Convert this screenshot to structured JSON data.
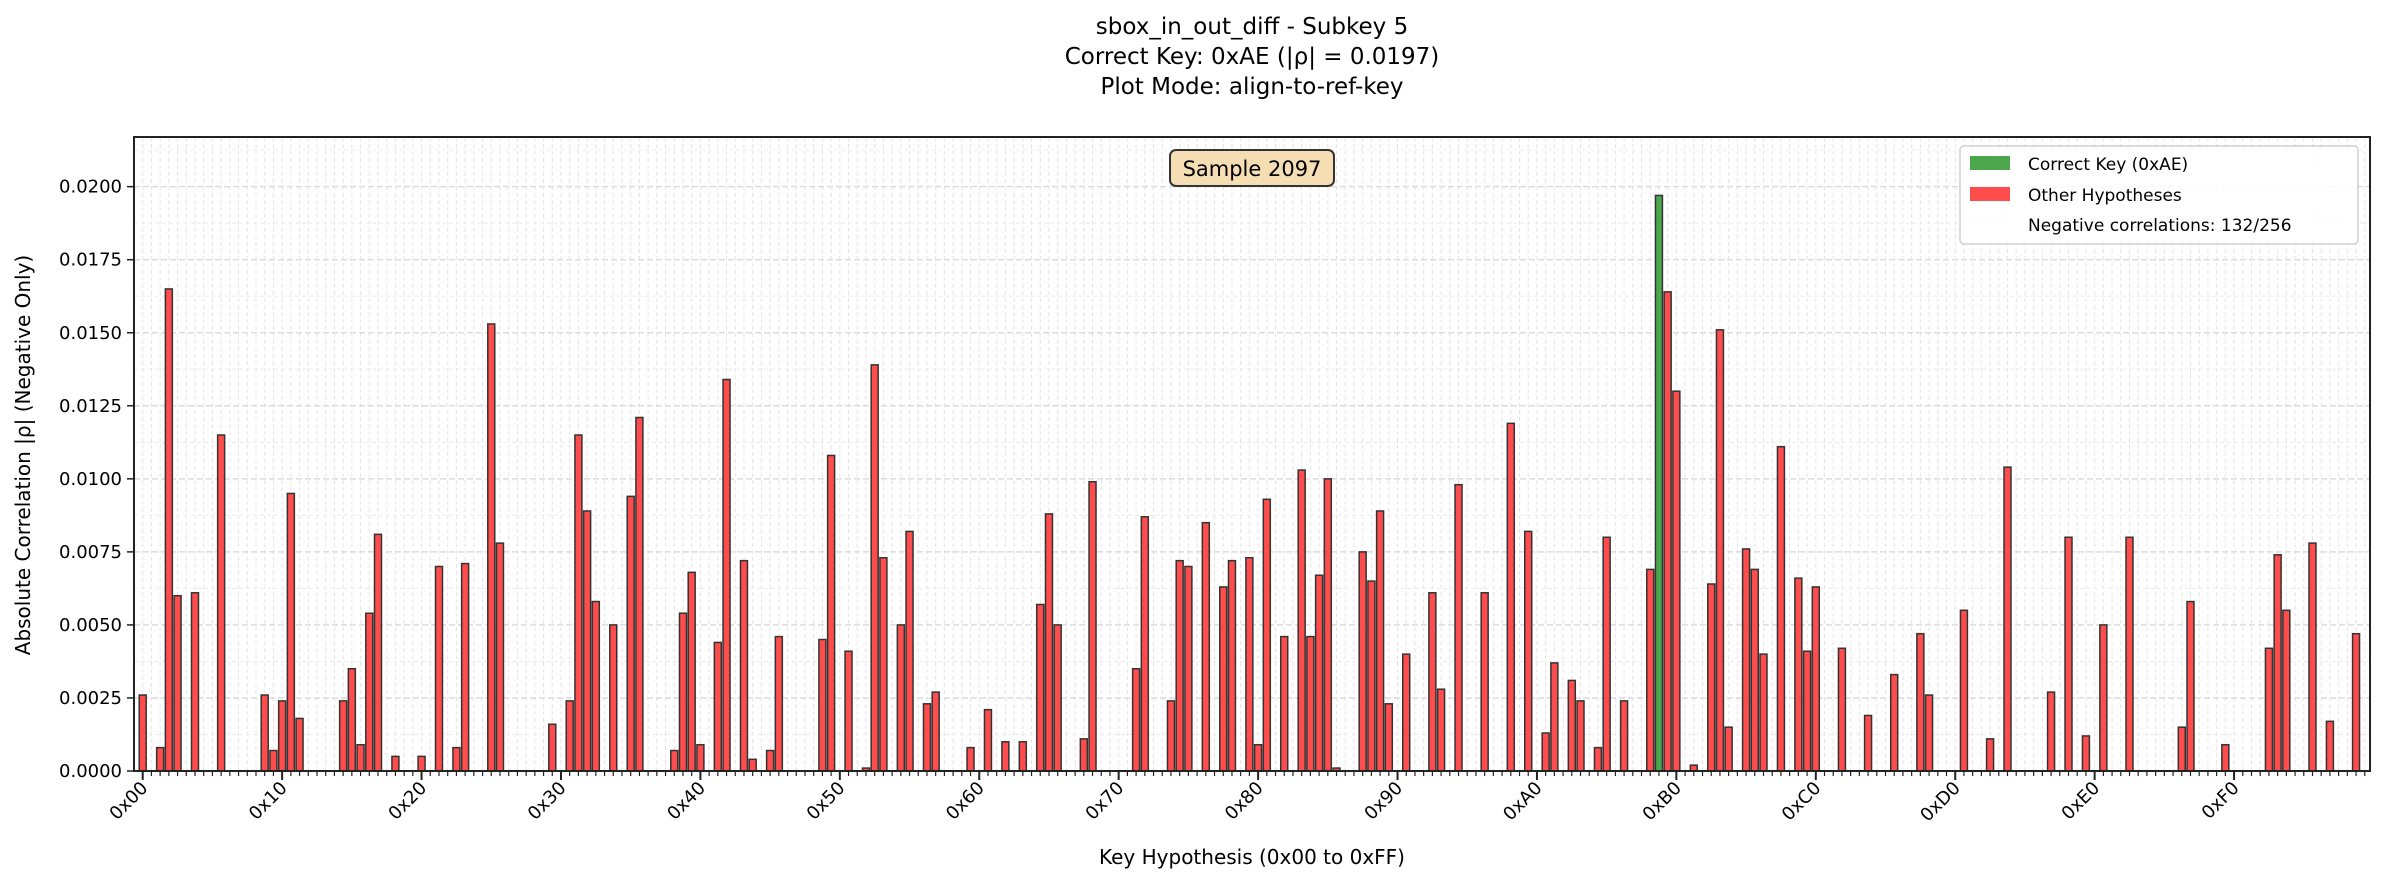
{
  "chart_data": {
    "type": "bar",
    "title_lines": [
      "sbox_in_out_diff - Subkey 5",
      "Correct Key: 0xAE (|ρ| = 0.0197)",
      "Plot Mode: align-to-ref-key"
    ],
    "xlabel": "Key Hypothesis (0x00 to 0xFF)",
    "ylabel": "Absolute Correlation |ρ| (Negative Only)",
    "xlim": [
      -1,
      255.6
    ],
    "ylim": [
      0,
      0.0217
    ],
    "grid": true,
    "x_tick_values": [
      0,
      16,
      32,
      48,
      64,
      80,
      96,
      112,
      128,
      144,
      160,
      176,
      192,
      208,
      224,
      240
    ],
    "x_tick_labels": [
      "0x00",
      "0x10",
      "0x20",
      "0x30",
      "0x40",
      "0x50",
      "0x60",
      "0x70",
      "0x80",
      "0x90",
      "0xA0",
      "0xB0",
      "0xC0",
      "0xD0",
      "0xE0",
      "0xF0"
    ],
    "y_tick_values": [
      0,
      0.0025,
      0.005,
      0.0075,
      0.01,
      0.0125,
      0.015,
      0.0175,
      0.02
    ],
    "y_tick_labels": [
      "0.0000",
      "0.0025",
      "0.0050",
      "0.0075",
      "0.0100",
      "0.0125",
      "0.0150",
      "0.0175",
      "0.0200"
    ],
    "correct_key_index": 174,
    "annotation": "Sample 2097",
    "legend": {
      "placement": "top-right",
      "entries": [
        {
          "label": "Correct Key (0xAE)",
          "color": "#4ca64c"
        },
        {
          "label": "Other Hypotheses",
          "color": "#ff4d4d"
        },
        {
          "label": "Negative correlations: 132/256",
          "color": null
        }
      ]
    },
    "colors": {
      "correct": "#4ca64c",
      "other": "#ff4d4d",
      "edge": "#333333"
    },
    "values": [
      0.0026,
      0,
      0.0008,
      0.0165,
      0.006,
      0,
      0.0061,
      0,
      0,
      0.0115,
      0,
      0,
      0,
      0,
      0.0026,
      0.0007,
      0.0024,
      0.0095,
      0.0018,
      0,
      0,
      0,
      0,
      0.0024,
      0.0035,
      0.0009,
      0.0054,
      0.0081,
      0,
      0.0005,
      0,
      0,
      0.0005,
      0,
      0.007,
      0,
      0.0008,
      0.0071,
      0,
      0,
      0.0153,
      0.0078,
      0,
      0,
      0,
      0,
      0,
      0.0016,
      0,
      0.0024,
      0.0115,
      0.0089,
      0.0058,
      0,
      0.005,
      0,
      0.0094,
      0.0121,
      0,
      0,
      0,
      0.0007,
      0.0054,
      0.0068,
      0.0009,
      0,
      0.0044,
      0.0134,
      0,
      0.0072,
      0.0004,
      0,
      0.0007,
      0.0046,
      0,
      0,
      0,
      0,
      0.0045,
      0.0108,
      0,
      0.0041,
      0,
      0.0001,
      0.0139,
      0.0073,
      0,
      0.005,
      0.0082,
      0,
      0.0023,
      0.0027,
      0,
      0,
      0,
      0.0008,
      0,
      0.0021,
      0,
      0.001,
      0,
      0.001,
      0,
      0.0057,
      0.0088,
      0.005,
      0,
      0,
      0.0011,
      0.0099,
      0,
      0,
      0,
      0,
      0.0035,
      0.0087,
      0,
      0,
      0.0024,
      0.0072,
      0.007,
      0,
      0.0085,
      0,
      0.0063,
      0.0072,
      0,
      0.0073,
      0.0009,
      0.0093,
      0,
      0.0046,
      0,
      0.0103,
      0.0046,
      0.0067,
      0.01,
      0.0001,
      0,
      0,
      0.0075,
      0.0065,
      0.0089,
      0.0023,
      0,
      0.004,
      0,
      0,
      0.0061,
      0.0028,
      0,
      0.0098,
      0,
      0,
      0.0061,
      0,
      0,
      0.0119,
      0,
      0.0082,
      0,
      0.0013,
      0.0037,
      0,
      0.0031,
      0.0024,
      0,
      0.0008,
      0.008,
      0,
      0.0024,
      0,
      0,
      0.0069,
      0.0197,
      0.0164,
      0.013,
      0,
      0.0002,
      0,
      0.0064,
      0.0151,
      0.0015,
      0,
      0.0076,
      0.0069,
      0.004,
      0,
      0.0111,
      0,
      0.0066,
      0.0041,
      0.0063,
      0,
      0,
      0.0042,
      0,
      0,
      0.0019,
      0,
      0,
      0.0033,
      0,
      0,
      0.0047,
      0.0026,
      0,
      0,
      0,
      0.0055,
      0,
      0,
      0.0011,
      0,
      0.0104,
      0,
      0,
      0,
      0,
      0.0027,
      0,
      0.008,
      0,
      0.0012,
      0,
      0.005,
      0,
      0,
      0.008,
      0,
      0,
      0,
      0,
      0,
      0.0015,
      0.0058,
      0,
      0,
      0,
      0.0009,
      0,
      0,
      0,
      0,
      0.0042,
      0.0074,
      0.0055,
      0,
      0,
      0.0078,
      0,
      0.0017,
      0,
      0,
      0.0047,
      0
    ]
  }
}
